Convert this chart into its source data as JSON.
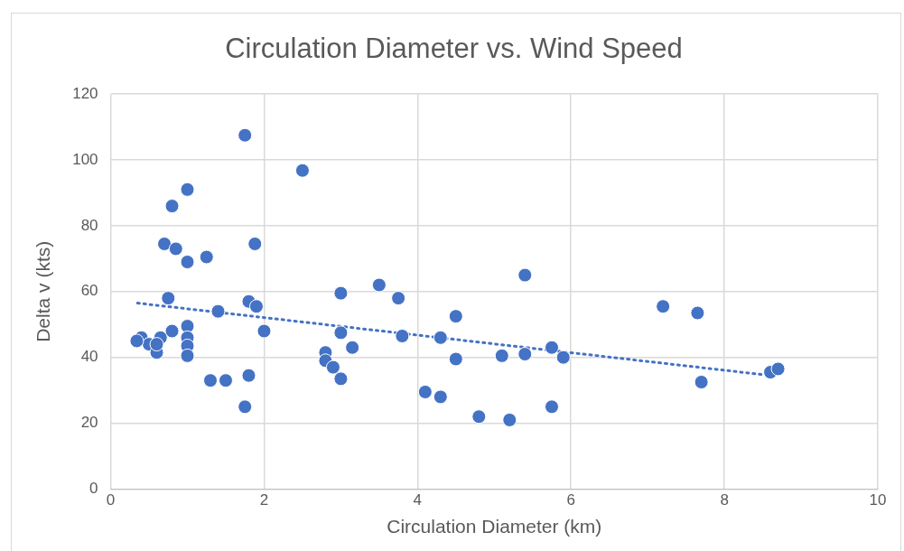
{
  "chart_data": {
    "type": "scatter",
    "title": "Circulation Diameter vs. Wind Speed",
    "xlabel": "Circulation Diameter (km)",
    "ylabel": "Delta v (kts)",
    "xlim": [
      0,
      10
    ],
    "xticks": [
      0,
      2,
      4,
      6,
      8,
      10
    ],
    "ylim": [
      0,
      120
    ],
    "yticks": [
      0,
      20,
      40,
      60,
      80,
      100,
      120
    ],
    "grid": true,
    "legend": false,
    "marker": "circle",
    "series": [
      {
        "color": "#4472c4",
        "x": [
          0.4,
          0.5,
          0.6,
          0.65,
          0.8,
          1.0,
          1.0,
          1.0,
          1.0,
          0.75,
          0.7,
          0.85,
          1.0,
          1.25,
          0.8,
          1.0,
          1.75,
          2.5,
          1.88,
          1.4,
          1.8,
          1.9,
          2.0,
          1.3,
          1.5,
          1.8,
          1.75,
          3.0,
          2.8,
          2.8,
          2.9,
          3.0,
          3.0,
          3.15,
          3.5,
          3.75,
          3.8,
          4.3,
          4.5,
          4.5,
          4.1,
          4.3,
          4.8,
          5.2,
          5.1,
          5.4,
          5.4,
          5.75,
          5.9,
          5.75,
          7.2,
          7.65,
          7.7,
          8.6,
          8.7,
          0.34,
          0.6
        ],
        "values": [
          46,
          44,
          41.5,
          46,
          48,
          49.5,
          46,
          43.5,
          40.5,
          58,
          74.5,
          73,
          69,
          70.5,
          86,
          91,
          107.5,
          96.8,
          74.5,
          54,
          57,
          55.5,
          48,
          33,
          33,
          34.5,
          25,
          59.5,
          41.5,
          39,
          37,
          33.5,
          47.5,
          43,
          62,
          58,
          46.5,
          46,
          52.5,
          39.5,
          29.5,
          28,
          22,
          21,
          40.5,
          65,
          41,
          43,
          40,
          25,
          55.5,
          53.5,
          32.5,
          35.5,
          36.5,
          45,
          44
        ]
      },
      {
        "type": "line",
        "color": "#4472c4",
        "line_style": "dotted",
        "marker": "none",
        "x": [
          0.35,
          8.6
        ],
        "values": [
          56.5,
          34.5
        ]
      }
    ]
  }
}
